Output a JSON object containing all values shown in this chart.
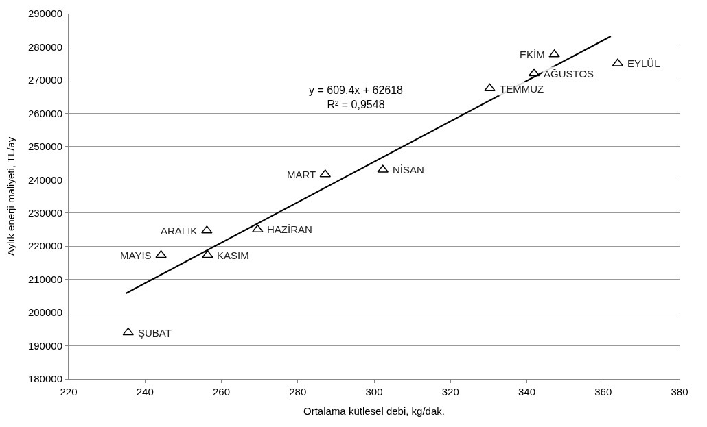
{
  "chart_data": {
    "type": "scatter",
    "xlabel": "Ortalama kütlesel debi, kg/dak.",
    "ylabel": "Aylık enerji maliyeti, TL/ay",
    "xlim": [
      220,
      380
    ],
    "xticks": [
      220,
      240,
      260,
      280,
      300,
      320,
      340,
      360,
      380
    ],
    "ylim": [
      180000,
      290000
    ],
    "yticks": [
      180000,
      190000,
      200000,
      210000,
      220000,
      230000,
      240000,
      250000,
      260000,
      270000,
      280000,
      290000
    ],
    "grid": "y",
    "marker": "triangle",
    "series": [
      {
        "color": "#000000",
        "x": [
          235.6,
          244.2,
          256.2,
          256.4,
          269.5,
          287.2,
          302.3,
          330.3,
          341.9,
          347.2,
          363.8
        ],
        "values": [
          194000,
          217300,
          224700,
          217300,
          225000,
          241600,
          243000,
          267500,
          272000,
          277700,
          275000
        ]
      },
      {
        "type": "line",
        "color": "#000000",
        "marker": "none",
        "line_style": "solid",
        "x": [
          235,
          362
        ],
        "values": [
          205800,
          283200
        ]
      }
    ],
    "annotations": [
      {
        "text": "ŞUBAT",
        "x": 235.6,
        "y": 194000
      },
      {
        "text": "MAYIS",
        "x": 244.2,
        "y": 217300
      },
      {
        "text": "ARALIK",
        "x": 256.2,
        "y": 224700
      },
      {
        "text": "KASIM",
        "x": 256.4,
        "y": 217300
      },
      {
        "text": "HAZİRAN",
        "x": 269.5,
        "y": 225000
      },
      {
        "text": "MART",
        "x": 287.2,
        "y": 241600
      },
      {
        "text": "NİSAN",
        "x": 302.3,
        "y": 243000
      },
      {
        "text": "TEMMUZ",
        "x": 330.3,
        "y": 267500
      },
      {
        "text": "AĞUSTOS",
        "x": 341.9,
        "y": 272000
      },
      {
        "text": "EKİM",
        "x": 347.2,
        "y": 277700
      },
      {
        "text": "EYLÜL",
        "x": 363.8,
        "y": 275000
      },
      "y = 609,4x + 62618\nR² = 0,9548"
    ]
  }
}
